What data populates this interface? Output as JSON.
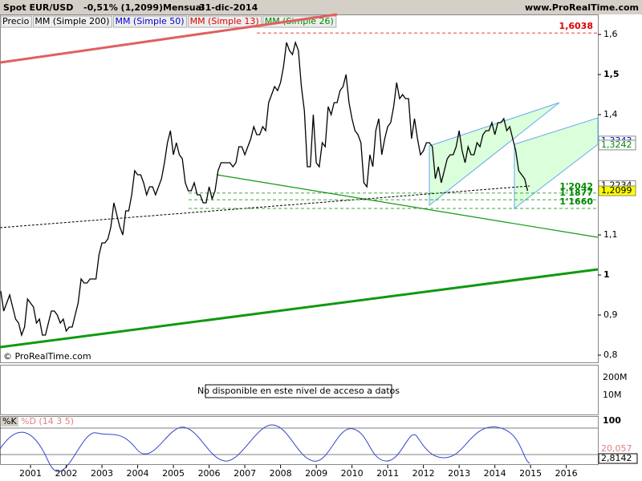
{
  "header": {
    "title": "Spot EUR/USD",
    "change": "-0,51% (1,2099)",
    "period": "Mensual",
    "date": "31-dic-2014",
    "site": "www.ProRealTime.com"
  },
  "legend": [
    {
      "name": "Precio",
      "color": "#000000"
    },
    {
      "name": "MM (Simple 200)",
      "color": "#000000"
    },
    {
      "name": "MM (Simple 50)",
      "color": "#0000cc"
    },
    {
      "name": "MM (Simple 13)",
      "color": "#dd0000"
    },
    {
      "name": "MM (Simple 26)",
      "color": "#008800"
    }
  ],
  "chart_data": {
    "type": "line",
    "color": "#000000",
    "values": [
      0.96,
      0.91,
      0.93,
      0.95,
      0.92,
      0.89,
      0.88,
      0.85,
      0.87,
      0.94,
      0.93,
      0.92,
      0.88,
      0.89,
      0.85,
      0.85,
      0.88,
      0.91,
      0.91,
      0.9,
      0.88,
      0.89,
      0.86,
      0.87,
      0.87,
      0.9,
      0.93,
      0.99,
      0.98,
      0.98,
      0.99,
      0.99,
      0.99,
      1.05,
      1.08,
      1.08,
      1.09,
      1.12,
      1.18,
      1.15,
      1.12,
      1.1,
      1.16,
      1.16,
      1.2,
      1.26,
      1.25,
      1.25,
      1.23,
      1.2,
      1.22,
      1.22,
      1.2,
      1.22,
      1.24,
      1.28,
      1.33,
      1.36,
      1.3,
      1.33,
      1.3,
      1.29,
      1.23,
      1.21,
      1.21,
      1.23,
      1.2,
      1.2,
      1.18,
      1.18,
      1.22,
      1.19,
      1.21,
      1.26,
      1.28,
      1.28,
      1.28,
      1.28,
      1.27,
      1.28,
      1.32,
      1.32,
      1.3,
      1.32,
      1.34,
      1.37,
      1.35,
      1.35,
      1.37,
      1.36,
      1.43,
      1.45,
      1.47,
      1.46,
      1.48,
      1.52,
      1.58,
      1.56,
      1.55,
      1.58,
      1.56,
      1.47,
      1.41,
      1.27,
      1.27,
      1.4,
      1.28,
      1.27,
      1.33,
      1.32,
      1.42,
      1.4,
      1.43,
      1.43,
      1.46,
      1.47,
      1.5,
      1.43,
      1.39,
      1.36,
      1.35,
      1.33,
      1.23,
      1.22,
      1.3,
      1.27,
      1.36,
      1.39,
      1.3,
      1.34,
      1.37,
      1.38,
      1.42,
      1.48,
      1.44,
      1.45,
      1.44,
      1.44,
      1.34,
      1.39,
      1.34,
      1.3,
      1.31,
      1.33,
      1.33,
      1.32,
      1.24,
      1.27,
      1.23,
      1.26,
      1.29,
      1.3,
      1.3,
      1.32,
      1.36,
      1.31,
      1.28,
      1.32,
      1.3,
      1.3,
      1.33,
      1.32,
      1.35,
      1.36,
      1.36,
      1.38,
      1.35,
      1.38,
      1.38,
      1.39,
      1.36,
      1.37,
      1.34,
      1.31,
      1.26,
      1.25,
      1.24,
      1.2099
    ],
    "xlim": [
      -0.25,
      200.6
    ],
    "xticks": [
      {
        "value": 10,
        "label": "2001"
      },
      {
        "value": 22,
        "label": "2002"
      },
      {
        "value": 34,
        "label": "2003"
      },
      {
        "value": 46,
        "label": "2004"
      },
      {
        "value": 58,
        "label": "2005"
      },
      {
        "value": 70,
        "label": "2006"
      },
      {
        "value": 82,
        "label": "2007"
      },
      {
        "value": 94,
        "label": "2008"
      },
      {
        "value": 106,
        "label": "2009"
      },
      {
        "value": 118,
        "label": "2010"
      },
      {
        "value": 130,
        "label": "2011"
      },
      {
        "value": 142,
        "label": "2012"
      },
      {
        "value": 154,
        "label": "2013"
      },
      {
        "value": 166,
        "label": "2014"
      },
      {
        "value": 178,
        "label": "2015"
      },
      {
        "value": 190,
        "label": "2016"
      }
    ],
    "ylim": [
      0.782,
      1.65
    ],
    "yticks": [
      {
        "value": 0.8,
        "label": "0,8"
      },
      {
        "value": 0.9,
        "label": "0,9"
      },
      1,
      {
        "value": 1.1,
        "label": "1,1"
      },
      {
        "value": 1.4,
        "label": "1,4"
      },
      {
        "value": 1.5,
        "label": "1,5"
      },
      {
        "value": 1.6,
        "label": "1,6"
      }
    ],
    "levels": [
      {
        "value": 1.6038,
        "label": "1,6038",
        "color": "#dd0000",
        "box": false
      },
      {
        "value": 1.3343,
        "label": "1,3343",
        "color": "#0000cc",
        "box": true
      },
      {
        "value": 1.3242,
        "label": "1,3242",
        "color": "#008800",
        "box": true
      },
      {
        "value": 1.2234,
        "label": "1,2234",
        "color": "#000000",
        "box": true
      },
      {
        "value": 1.2099,
        "label": "1,2099",
        "color": "#000000",
        "box": true,
        "fill": "#ffff00"
      },
      {
        "value": 1.2042,
        "label": "1'2042",
        "color": "#008800",
        "box": false
      },
      {
        "value": 1.1877,
        "label": "1'1877",
        "color": "#008800",
        "box": false
      },
      {
        "value": 1.166,
        "label": "1'1660",
        "color": "#008800",
        "box": false
      }
    ]
  },
  "watermark": "© ProRealTime.com",
  "volume": {
    "ticks": [
      "200M",
      "10M"
    ],
    "note": "No disponible en este nivel de acceso a datos"
  },
  "stochastic": {
    "labels": [
      "%K",
      "%D (14 3 5)"
    ],
    "top": "100",
    "values": [
      "20,057",
      "2,8142"
    ]
  }
}
